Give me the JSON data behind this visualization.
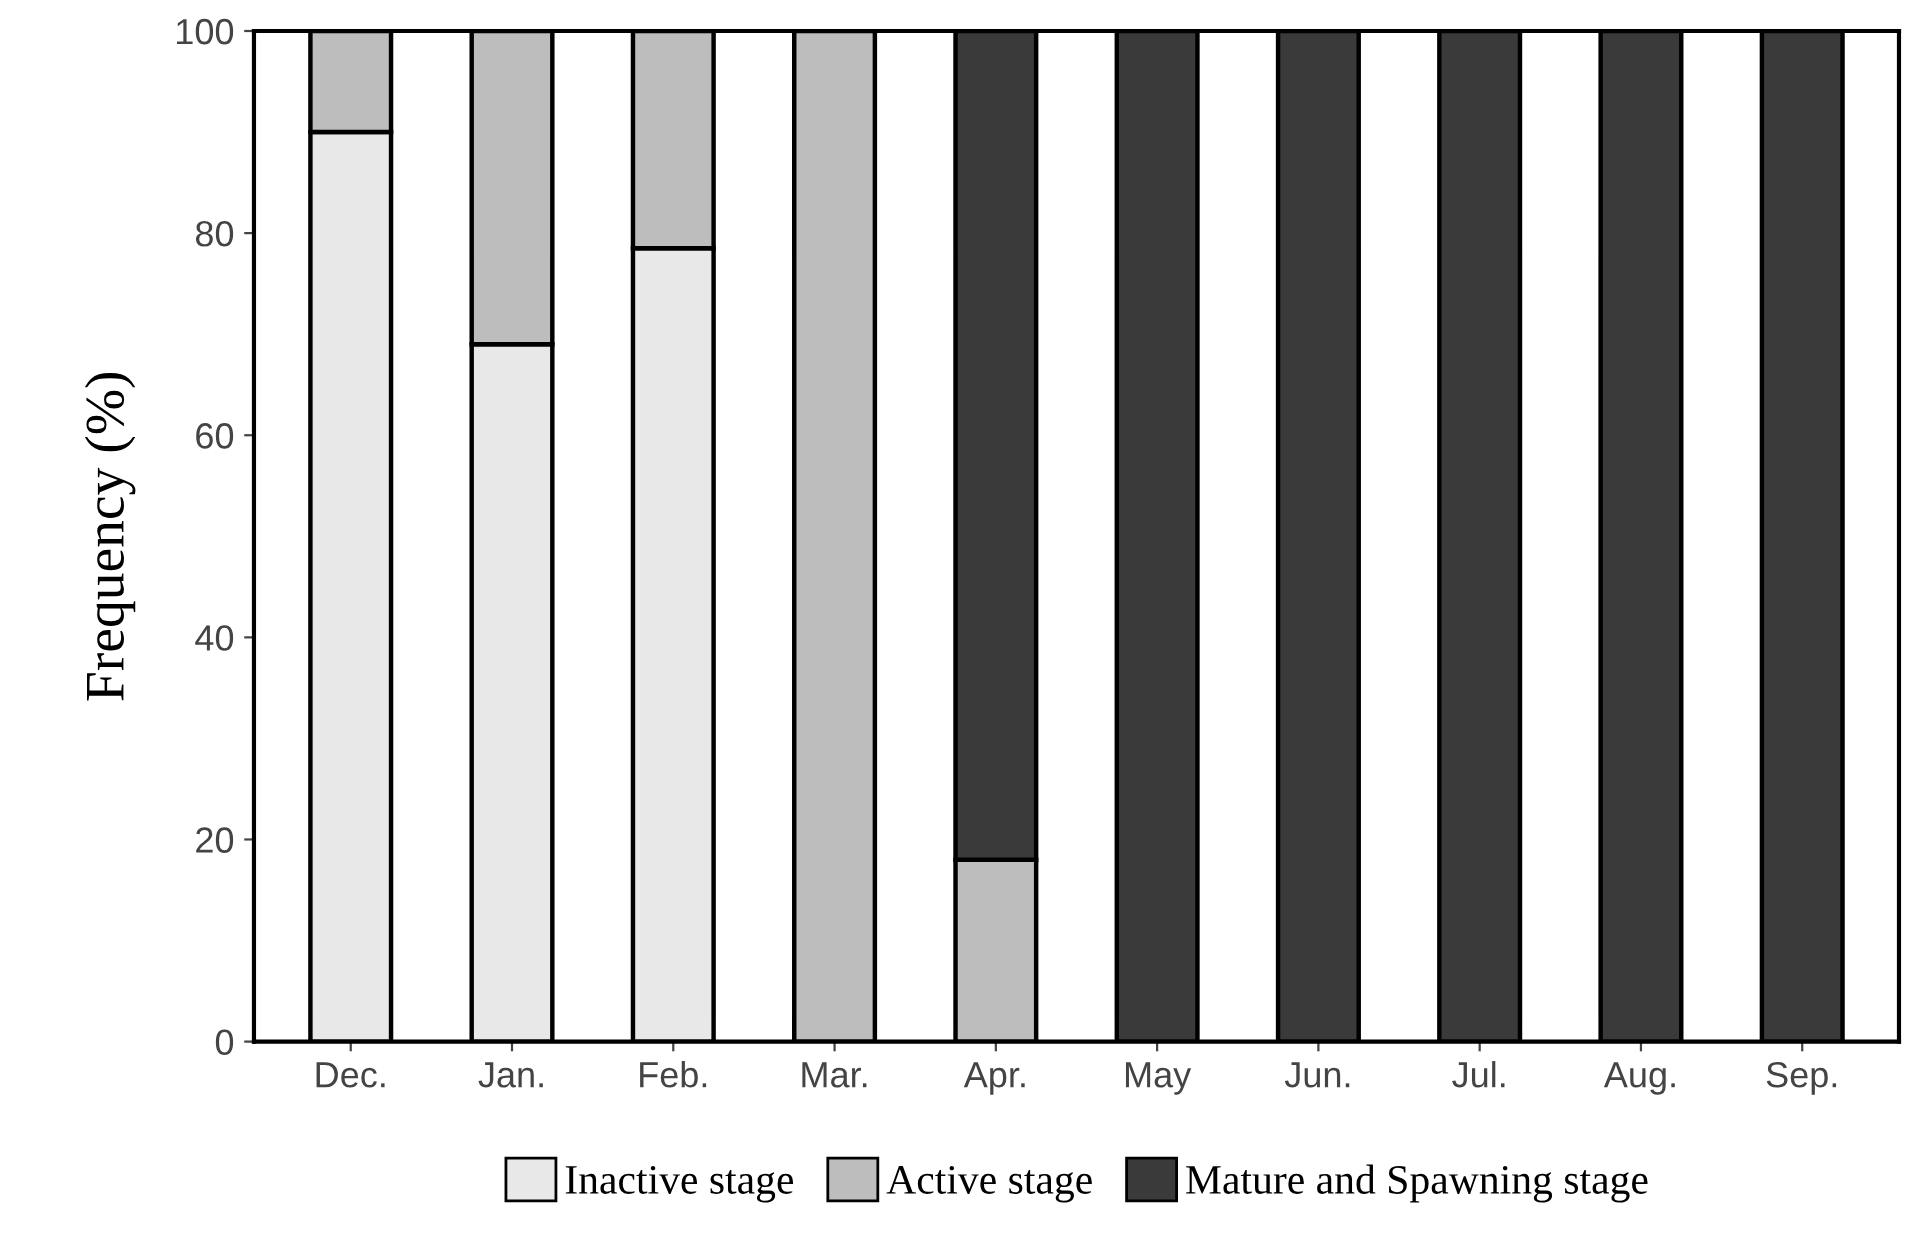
{
  "chart_data": {
    "type": "bar",
    "stacked": true,
    "ylabel": "Frequency (%)",
    "categories": [
      "Dec.",
      "Jan.",
      "Feb.",
      "Mar.",
      "Apr.",
      "May",
      "Jun.",
      "Jul.",
      "Aug.",
      "Sep."
    ],
    "series": [
      {
        "name": "Inactive stage",
        "color": "#e8e8e8",
        "values": [
          90,
          69,
          78.5,
          0,
          0,
          0,
          0,
          0,
          0,
          0
        ]
      },
      {
        "name": "Active stage",
        "color": "#bdbdbd",
        "values": [
          10,
          31,
          21.5,
          100,
          18,
          0,
          0,
          0,
          0,
          0
        ]
      },
      {
        "name": "Mature and Spawning stage",
        "color": "#3a3a3a",
        "values": [
          0,
          0,
          0,
          0,
          82,
          100,
          100,
          100,
          100,
          100
        ]
      }
    ],
    "ylim": [
      0,
      100
    ],
    "yticks": [
      0,
      20,
      40,
      60,
      80,
      100
    ],
    "grid": false,
    "legend": "bottom"
  }
}
